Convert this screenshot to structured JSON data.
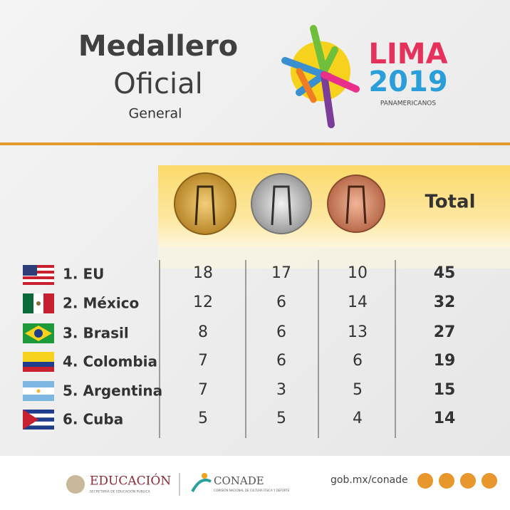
{
  "header": {
    "title_line1": "Medallero",
    "title_line2": "Oficial",
    "subtitle": "General",
    "logo": {
      "word": "LIMA",
      "year": "2019",
      "tagline": "PANAMERICANOS"
    }
  },
  "table": {
    "total_header": "Total",
    "rows": [
      {
        "country": "1. EU",
        "gold": 18,
        "silver": 17,
        "bronze": 10,
        "total": 45
      },
      {
        "country": "2. México",
        "gold": 12,
        "silver": 6,
        "bronze": 14,
        "total": 32
      },
      {
        "country": "3. Brasil",
        "gold": 8,
        "silver": 6,
        "bronze": 13,
        "total": 27
      },
      {
        "country": "4. Colombia",
        "gold": 7,
        "silver": 6,
        "bronze": 6,
        "total": 19
      },
      {
        "country": "5. Argentina",
        "gold": 7,
        "silver": 3,
        "bronze": 5,
        "total": 15
      },
      {
        "country": "6. Cuba",
        "gold": 5,
        "silver": 5,
        "bronze": 4,
        "total": 14
      }
    ]
  },
  "footer": {
    "education": "EDUCACIÓN",
    "education_sub": "SECRETARÍA DE EDUCACIÓN PÚBLICA",
    "conade": "CONADE",
    "conade_sub": "COMISIÓN NACIONAL DE CULTURA FÍSICA Y DEPORTE",
    "url": "gob.mx/conade"
  }
}
